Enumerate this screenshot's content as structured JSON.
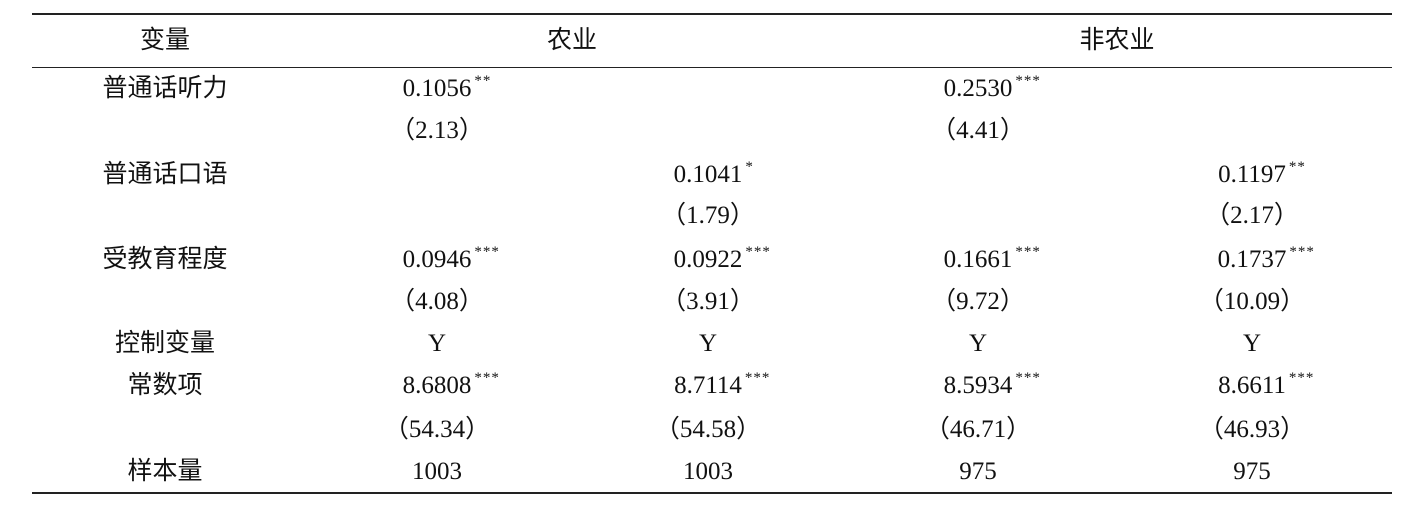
{
  "header": [
    "变量",
    "农业",
    "非农业"
  ],
  "rows": [
    [
      "普通话听力",
      {
        "value": "0.1056",
        "stars": "**"
      },
      null,
      {
        "value": "0.2530",
        "stars": "***"
      },
      null
    ],
    [
      null,
      "（2.13）",
      null,
      "（4.41）",
      null
    ],
    [
      "普通话口语",
      null,
      {
        "value": "0.1041",
        "stars": "*"
      },
      null,
      {
        "value": "0.1197",
        "stars": "**"
      }
    ],
    [
      null,
      null,
      "（1.79）",
      null,
      "（2.17）"
    ],
    [
      "受教育程度",
      {
        "value": "0.0946",
        "stars": "***"
      },
      {
        "value": "0.0922",
        "stars": "***"
      },
      {
        "value": "0.1661",
        "stars": "***"
      },
      {
        "value": "0.1737",
        "stars": "***"
      }
    ],
    [
      null,
      "（4.08）",
      "（3.91）",
      "（9.72）",
      "（10.09）"
    ],
    [
      "控制变量",
      "Y",
      "Y",
      "Y",
      "Y"
    ],
    [
      "常数项",
      {
        "value": "8.6808",
        "stars": "***"
      },
      {
        "value": "8.7114",
        "stars": "***"
      },
      {
        "value": "8.5934",
        "stars": "***"
      },
      {
        "value": "8.6611",
        "stars": "***"
      }
    ],
    [
      null,
      "（54.34）",
      "（54.58）",
      "（46.71）",
      "（46.93）"
    ],
    [
      "样本量",
      "1003",
      "1003",
      "975",
      "975"
    ]
  ]
}
